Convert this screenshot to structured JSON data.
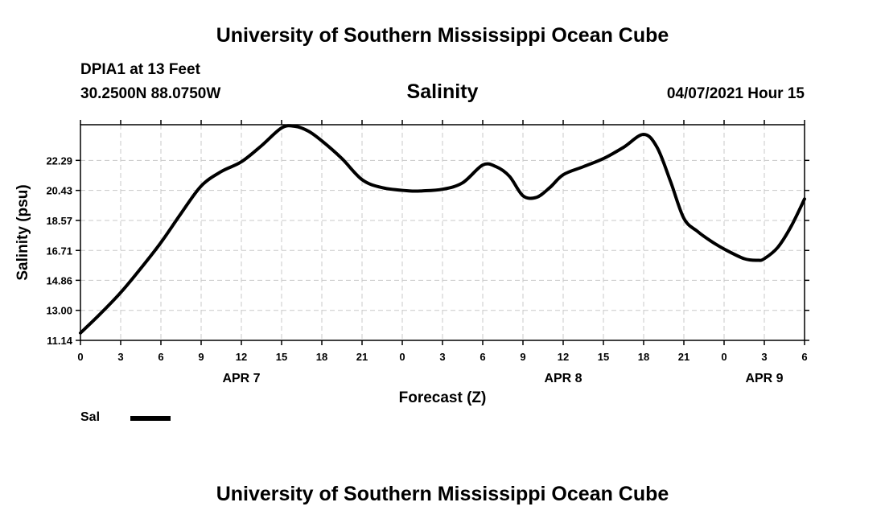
{
  "header": {
    "title": "University of Southern Mississippi Ocean Cube",
    "station": "DPIA1 at 13 Feet",
    "coords": "30.2500N  88.0750W",
    "chart_title": "Salinity",
    "timestamp": "04/07/2021 Hour 15"
  },
  "footer": {
    "title": "University of Southern Mississippi Ocean Cube"
  },
  "legend": {
    "label": "Sal",
    "color": "#000000"
  },
  "chart_data": {
    "type": "line",
    "title": "Salinity",
    "xlabel": "Forecast (Z)",
    "ylabel": "Salinity (psu)",
    "ylim": [
      11.14,
      24.5
    ],
    "xlim": [
      0,
      54
    ],
    "grid": true,
    "legend_position": "bottom-left",
    "yticks": [
      "11.14",
      "13.00",
      "14.86",
      "16.71",
      "18.57",
      "20.43",
      "22.29"
    ],
    "xticks": [
      "0",
      "3",
      "6",
      "9",
      "12",
      "15",
      "18",
      "21",
      "0",
      "3",
      "6",
      "9",
      "12",
      "15",
      "18",
      "21",
      "0",
      "3",
      "6"
    ],
    "date_labels": [
      {
        "label": "APR 7",
        "at_hour": 12
      },
      {
        "label": "APR 8",
        "at_hour": 36
      },
      {
        "label": "APR 9",
        "at_hour": 51
      }
    ],
    "series": [
      {
        "name": "Sal",
        "color": "#000000",
        "x": [
          0,
          1.5,
          3,
          4.5,
          6,
          7.5,
          9,
          10.5,
          12,
          13.5,
          15,
          16,
          17,
          18,
          19.5,
          21,
          22.5,
          24.5,
          25.5,
          27,
          28.5,
          30,
          31,
          32,
          33,
          34,
          35,
          36,
          37.5,
          39,
          40.5,
          42,
          43,
          44,
          45,
          46,
          47,
          48,
          49.5,
          50.5,
          51,
          52,
          53,
          54
        ],
        "values": [
          11.6,
          12.8,
          14.1,
          15.6,
          17.2,
          19.0,
          20.7,
          21.6,
          22.2,
          23.2,
          24.3,
          24.4,
          24.1,
          23.5,
          22.4,
          21.1,
          20.6,
          20.4,
          20.4,
          20.5,
          20.9,
          22.0,
          21.9,
          21.3,
          20.1,
          20.0,
          20.6,
          21.4,
          21.9,
          22.4,
          23.1,
          23.9,
          23.1,
          21.0,
          18.7,
          17.9,
          17.3,
          16.8,
          16.2,
          16.1,
          16.2,
          16.9,
          18.2,
          19.9
        ]
      }
    ]
  }
}
